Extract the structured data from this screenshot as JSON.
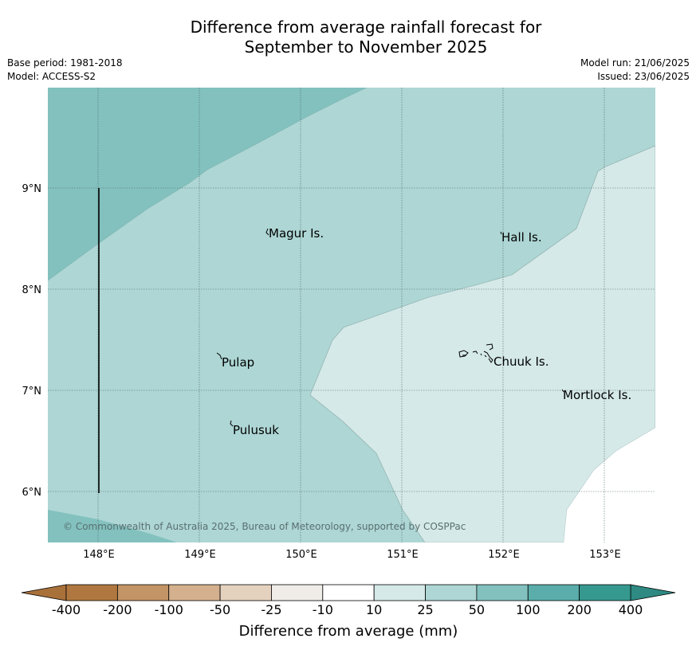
{
  "header": {
    "title_line1": "Difference from average rainfall forecast for",
    "title_line2": "September to November 2025",
    "base_period": "Base period: 1981-2018",
    "model": "Model: ACCESS-S2",
    "model_run": "Model run: 21/06/2025",
    "issued": "Issued: 23/06/2025"
  },
  "map": {
    "lon_ticks": [
      "148°E",
      "149°E",
      "150°E",
      "151°E",
      "152°E",
      "153°E"
    ],
    "lat_ticks": [
      "9°N",
      "8°N",
      "7°N",
      "6°N"
    ],
    "places": [
      {
        "name": "Magur Is."
      },
      {
        "name": "Hall Is."
      },
      {
        "name": "Pulap"
      },
      {
        "name": "Chuuk Is."
      },
      {
        "name": "Mortlock Is."
      },
      {
        "name": "Pulusuk"
      }
    ],
    "copyright": "© Commonwealth of Australia 2025, Bureau of Meteorology, supported by COSPPac",
    "colors": {
      "band_50_100": "#82c1be",
      "band_25_50": "#add6d4",
      "band_10_25": "#d4e9e8",
      "band_neutral": "#ffffff"
    }
  },
  "legend": {
    "ticks": [
      "-400",
      "-200",
      "-100",
      "-50",
      "-25",
      "-10",
      "10",
      "25",
      "50",
      "100",
      "200",
      "400"
    ],
    "colors": [
      "#b07840",
      "#c39466",
      "#d4b08e",
      "#e4d2bf",
      "#f0ede8",
      "#ffffff",
      "#d4e9e8",
      "#add6d4",
      "#82c1be",
      "#5aadaa",
      "#36998f"
    ],
    "under_color": "#a9713a",
    "over_color": "#2e8a82",
    "label": "Difference from average (mm)"
  }
}
